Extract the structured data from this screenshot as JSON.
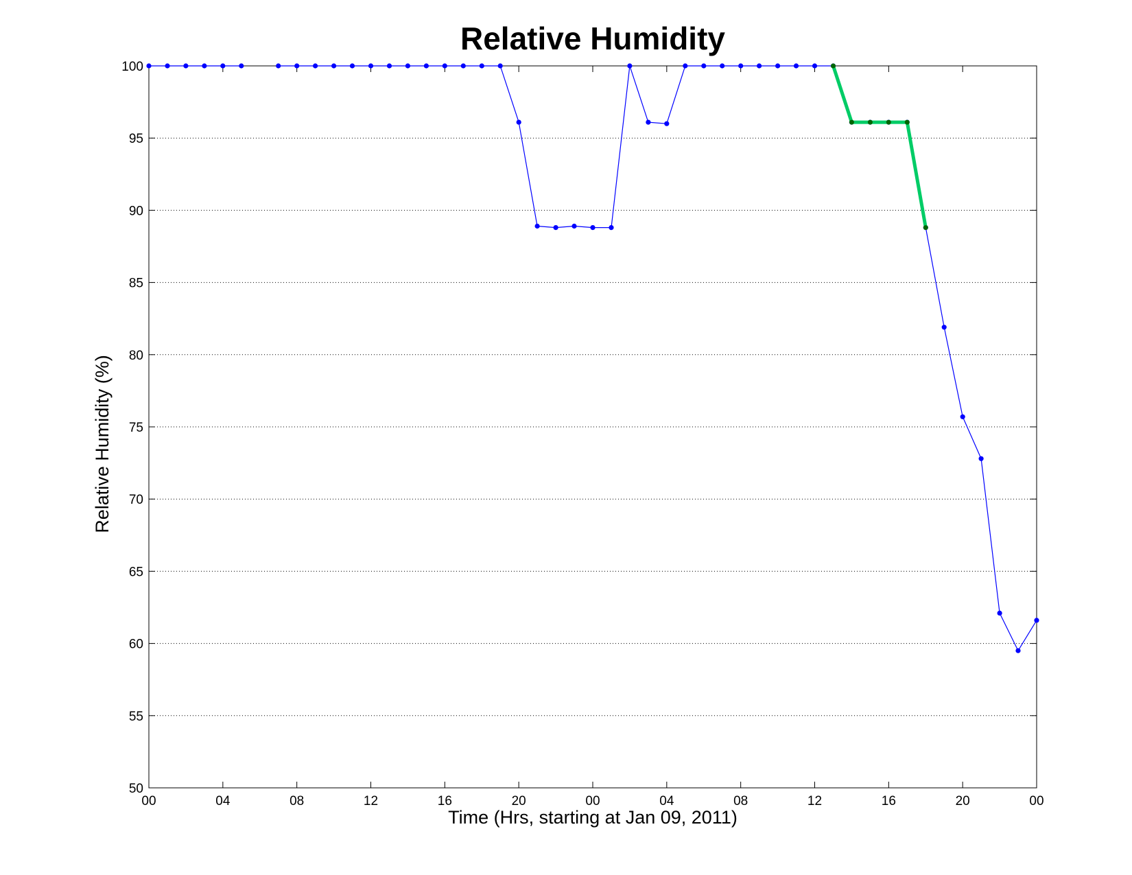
{
  "chart_data": {
    "type": "line",
    "title": "Relative Humidity",
    "xlabel": "Time (Hrs, starting at Jan 09, 2011)",
    "ylabel": "Relative Humidity (%)",
    "xlim": [
      0,
      48
    ],
    "ylim": [
      50,
      100
    ],
    "grid": "horizontal dotted",
    "x_ticks": [
      0,
      4,
      8,
      12,
      16,
      20,
      24,
      28,
      32,
      36,
      40,
      44,
      48
    ],
    "x_tick_labels": [
      "00",
      "04",
      "08",
      "12",
      "16",
      "20",
      "00",
      "04",
      "08",
      "12",
      "16",
      "20",
      "00"
    ],
    "y_ticks": [
      50,
      55,
      60,
      65,
      70,
      75,
      80,
      85,
      90,
      95,
      100
    ],
    "y_tick_labels": [
      "50",
      "55",
      "60",
      "65",
      "70",
      "75",
      "80",
      "85",
      "90",
      "95",
      "100"
    ],
    "series": [
      {
        "color": "#0000ff",
        "x": [
          0,
          1,
          2,
          3,
          4,
          5,
          6,
          7,
          8,
          9,
          10,
          11,
          12,
          13,
          14,
          15,
          16,
          17,
          18,
          19,
          20,
          21,
          22,
          23,
          24,
          25,
          26,
          27,
          28,
          29,
          30,
          31,
          32,
          33,
          34,
          35,
          36,
          37,
          38,
          39,
          40,
          41,
          42,
          43,
          44,
          45,
          46,
          47,
          48
        ],
        "y": [
          100,
          100,
          100,
          100,
          100,
          100,
          null,
          100,
          100,
          100,
          100,
          100,
          100,
          100,
          100,
          100,
          100,
          100,
          100,
          100,
          96.1,
          88.9,
          88.8,
          88.9,
          88.8,
          88.8,
          100,
          96.1,
          96.0,
          100,
          100,
          100,
          100,
          100,
          100,
          100,
          100,
          100,
          96.1,
          96.1,
          96.1,
          96.1,
          88.8,
          81.9,
          75.7,
          72.8,
          62.1,
          59.5,
          61.6
        ]
      },
      {
        "color": "#00cc66",
        "marker_color": "#006600",
        "x": [
          37,
          38,
          39,
          40,
          41,
          42
        ],
        "y": [
          100,
          96.1,
          96.1,
          96.1,
          96.1,
          88.8
        ]
      }
    ]
  }
}
